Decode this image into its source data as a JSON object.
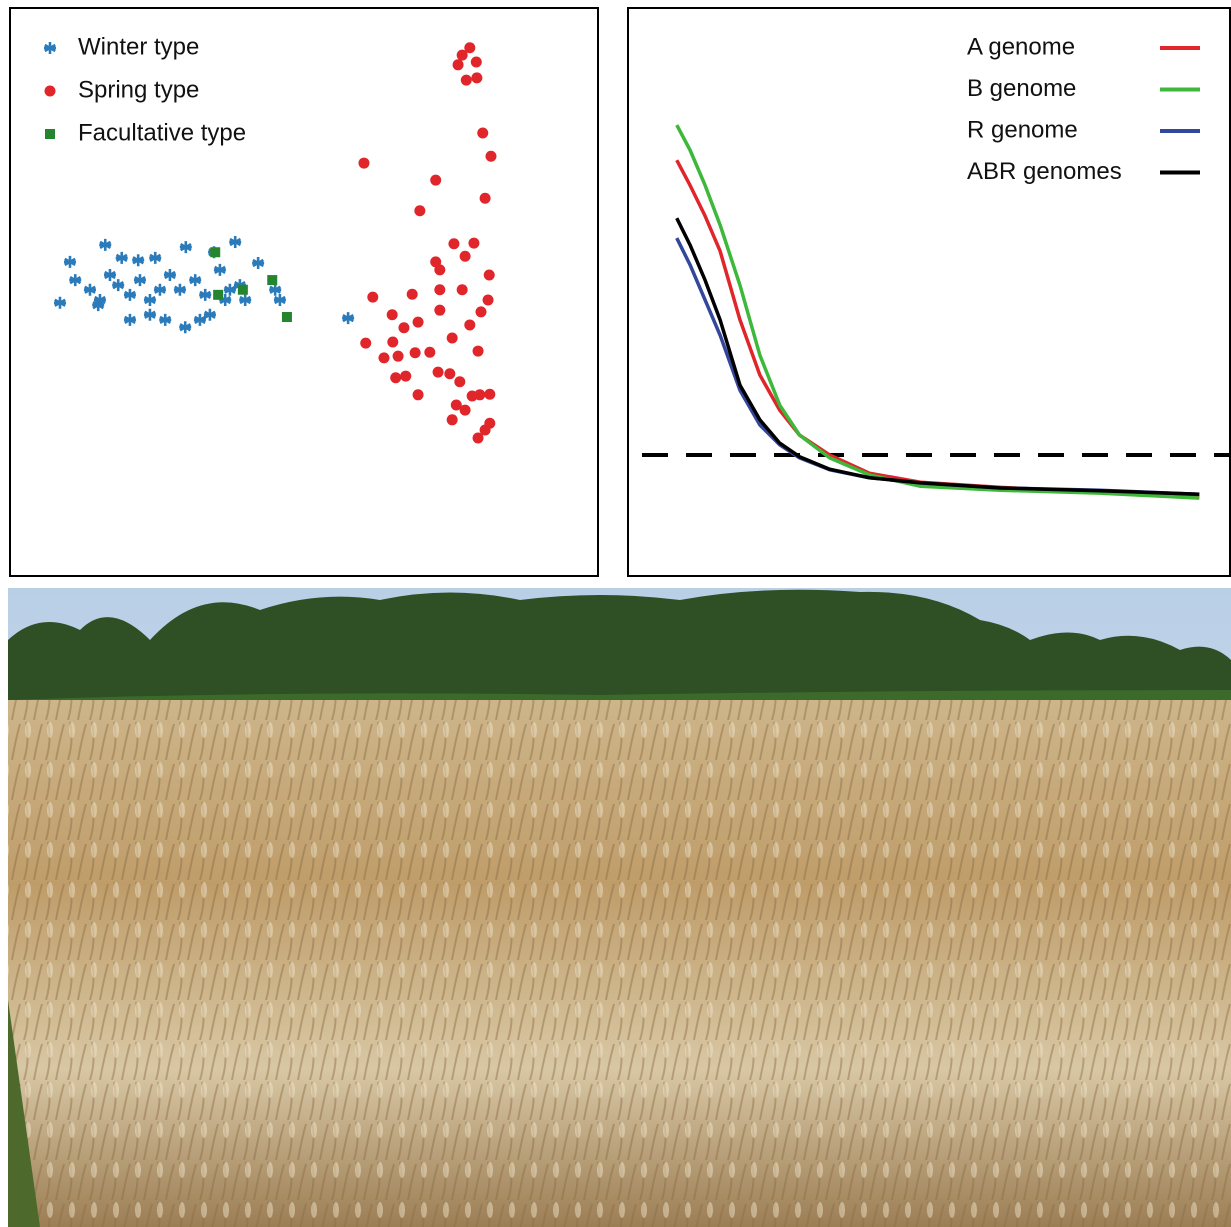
{
  "chart_data": [
    {
      "type": "scatter",
      "xlim": [
        0,
        100
      ],
      "ylim": [
        0,
        100
      ],
      "legend": "top-left",
      "series": [
        {
          "name": "Winter type",
          "color": "#2b7bbb",
          "marker": "star",
          "x": [
            10.2,
            16.2,
            19.0,
            21.8,
            24.7,
            29.9,
            34.7,
            38.3,
            42.2,
            8.5,
            11.1,
            13.6,
            15.3,
            18.4,
            20.4,
            22.1,
            23.8,
            25.5,
            27.2,
            28.9,
            31.5,
            33.2,
            35.7,
            37.4,
            39.1,
            40.0,
            20.4,
            23.8,
            26.4,
            29.8,
            32.3,
            34.0,
            45.1,
            45.9,
            57.5,
            15.0,
            36.6,
            17.0
          ],
          "y": [
            55.3,
            58.3,
            56.0,
            55.6,
            56.0,
            57.9,
            57.0,
            58.8,
            55.1,
            48.1,
            52.1,
            50.4,
            48.6,
            51.2,
            49.5,
            52.1,
            48.6,
            50.4,
            53.0,
            50.4,
            52.1,
            49.5,
            53.9,
            50.4,
            51.2,
            48.6,
            45.1,
            46.0,
            45.1,
            43.8,
            45.1,
            46.0,
            50.4,
            48.6,
            45.4,
            47.7,
            48.6,
            53.0
          ]
        },
        {
          "name": "Spring type",
          "color": "#e0262b",
          "marker": "circle",
          "x": [
            78.2,
            76.9,
            76.2,
            77.6,
            79.4,
            79.3,
            80.4,
            81.8,
            60.2,
            72.4,
            80.8,
            69.7,
            75.5,
            78.9,
            77.4,
            72.4,
            81.5,
            73.1,
            61.7,
            68.4,
            73.1,
            76.9,
            81.3,
            65.0,
            73.1,
            67.0,
            80.1,
            69.4,
            78.2,
            60.5,
            65.1,
            75.2,
            63.6,
            66.0,
            68.9,
            71.4,
            79.6,
            67.3,
            72.8,
            74.8,
            65.6,
            76.5,
            69.4,
            79.9,
            81.6,
            75.9,
            77.4,
            75.2,
            81.6,
            79.6,
            80.8,
            78.6
          ],
          "y": [
            93.0,
            91.7,
            90.0,
            87.3,
            87.7,
            90.5,
            78.0,
            73.9,
            72.7,
            69.7,
            66.5,
            64.3,
            58.5,
            58.6,
            56.3,
            55.3,
            53.0,
            53.9,
            49.1,
            49.6,
            50.4,
            50.4,
            48.6,
            46.0,
            46.8,
            43.7,
            46.5,
            44.7,
            44.2,
            41.0,
            41.2,
            41.9,
            38.4,
            38.7,
            39.3,
            39.4,
            39.6,
            35.2,
            35.9,
            35.6,
            34.9,
            34.2,
            31.9,
            31.9,
            32.0,
            30.1,
            29.2,
            27.5,
            26.9,
            24.3,
            25.7,
            31.7
          ]
        },
        {
          "name": "Facultative type",
          "color": "#23862e",
          "marker": "square",
          "x": [
            34.9,
            35.4,
            39.6,
            44.6,
            47.1
          ],
          "y": [
            57.0,
            49.5,
            50.4,
            52.1,
            45.6
          ]
        }
      ]
    },
    {
      "type": "line",
      "xlim": [
        0,
        100
      ],
      "ylim": [
        0,
        100
      ],
      "legend": "top-right",
      "x": [
        8.1,
        10.3,
        12.8,
        15.3,
        18.6,
        21.9,
        25.2,
        28.5,
        33.5,
        40.1,
        48.6,
        61.9,
        78.4,
        94.9
      ],
      "hline": 21.3,
      "series": [
        {
          "name": "A genome",
          "color": "#e0262b",
          "y": [
            73.2,
            68.8,
            63.4,
            57.2,
            45.1,
            35.4,
            29.2,
            24.8,
            21.3,
            18.1,
            16.5,
            15.6,
            14.8,
            13.9
          ]
        },
        {
          "name": "B genome",
          "color": "#3db83a",
          "y": [
            79.4,
            75.0,
            68.8,
            61.8,
            51.2,
            38.9,
            30.1,
            24.8,
            20.8,
            17.8,
            15.8,
            15.1,
            14.6,
            13.7
          ]
        },
        {
          "name": "R genome",
          "color": "#33479c",
          "y": [
            59.5,
            54.8,
            48.6,
            42.4,
            32.7,
            26.6,
            23.1,
            20.8,
            18.7,
            17.3,
            16.4,
            15.5,
            15.1,
            14.4
          ]
        },
        {
          "name": "ABR genomes",
          "color": "#000000",
          "y": [
            63.0,
            58.3,
            52.1,
            45.1,
            33.6,
            27.5,
            23.4,
            21.0,
            18.8,
            17.3,
            16.4,
            15.5,
            15.0,
            14.4
          ]
        }
      ]
    }
  ]
}
